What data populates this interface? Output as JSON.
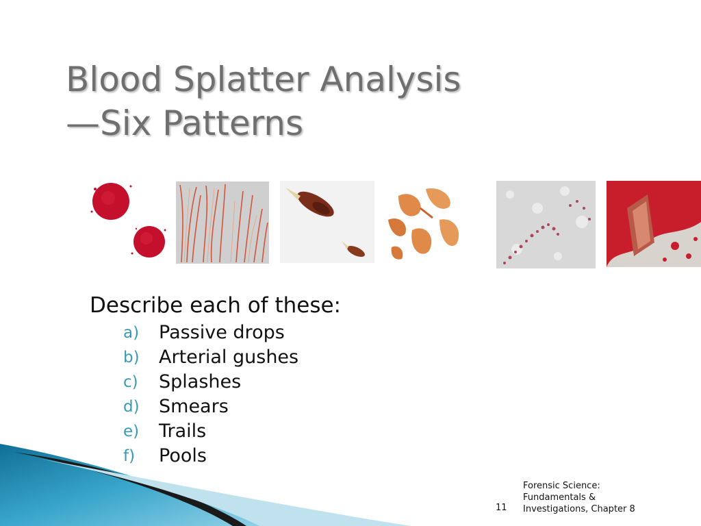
{
  "slide": {
    "title_line1": "Blood Splatter Analysis",
    "title_line2": "—Six Patterns",
    "lead": "Describe each of these:",
    "items": [
      {
        "marker": "a)",
        "label": "Passive drops"
      },
      {
        "marker": "b)",
        "label": "Arterial gushes"
      },
      {
        "marker": "c)",
        "label": "Splashes"
      },
      {
        "marker": "d)",
        "label": "Smears"
      },
      {
        "marker": "e)",
        "label": "Trails"
      },
      {
        "marker": "f)",
        "label": "Pools"
      }
    ],
    "page_number": "11",
    "footer_line1": "Forensic Science:",
    "footer_line2": "Fundamentals &",
    "footer_line3": "Investigations, Chapter 8"
  },
  "colors": {
    "title": "#6f6f6f",
    "marker": "#3a9ab3",
    "blood": "#c0102a",
    "swoosh_dark": "#1a7fa5",
    "swoosh_light": "#bfe2ee"
  }
}
